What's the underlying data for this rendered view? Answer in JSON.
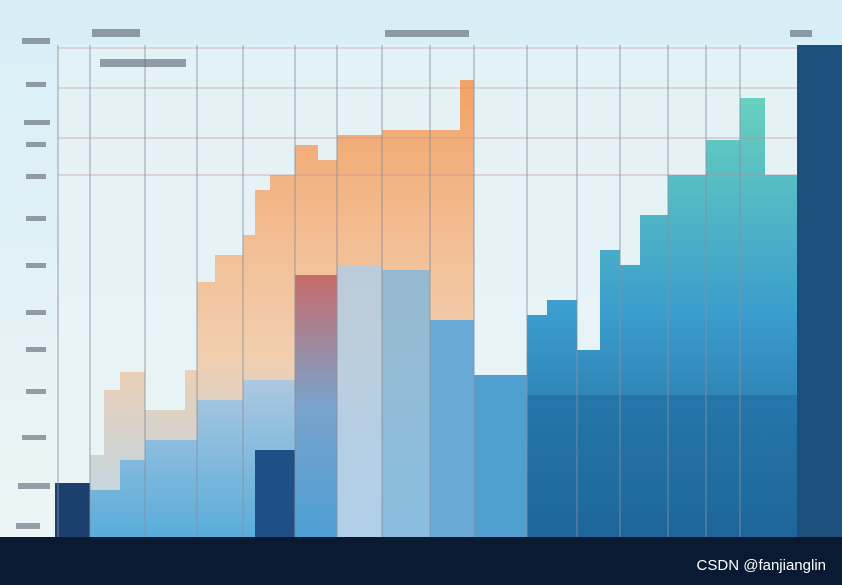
{
  "watermark": "CSDN @fanjianglin"
}
